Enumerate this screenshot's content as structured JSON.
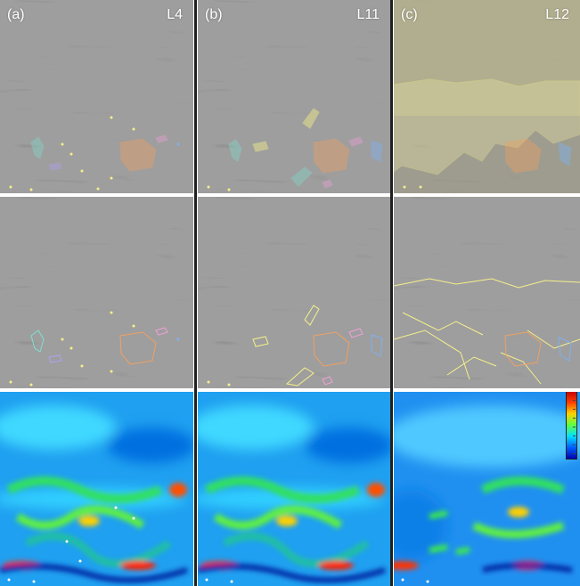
{
  "columns": [
    {
      "id": "a",
      "panel_label": "(a)",
      "level_label": "L4"
    },
    {
      "id": "b",
      "panel_label": "(b)",
      "level_label": "L11"
    },
    {
      "id": "c",
      "panel_label": "(c)",
      "level_label": "L12"
    }
  ],
  "rows": [
    "flow-texture-with-highlighted-regions",
    "flow-texture-with-region-outlines",
    "scalar-color-map"
  ],
  "colors": {
    "texture_base": "#7a7a7a",
    "highlight_yellow": "#f6f08a",
    "cyan_region": "#7fe0d0",
    "orange_region": "#f0a060",
    "pink_region": "#f0a0d8",
    "blue_region": "#80b0f0",
    "violet_region": "#b0a0f0"
  },
  "colorbar": {
    "name": "colorbar",
    "stops": [
      "#c00000",
      "#ff3a00",
      "#ffd000",
      "#60ff40",
      "#00e0ff",
      "#0060ff",
      "#0000b0"
    ]
  }
}
